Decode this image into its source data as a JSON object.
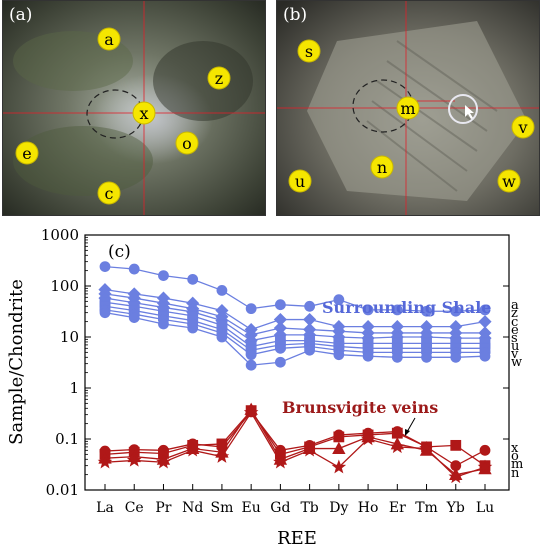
{
  "colors": {
    "shale": "#6b7fe0",
    "veins": "#b01818",
    "marker_fill": "#f5e600",
    "crosshair": "#e0202a",
    "annotation_blue": "#5568d8",
    "annotation_red": "#9c1a1a"
  },
  "photos": [
    {
      "panel": "(a)",
      "markers": [
        "a",
        "z",
        "x",
        "e",
        "o",
        "c"
      ]
    },
    {
      "panel": "(b)",
      "markers": [
        "s",
        "m",
        "v",
        "u",
        "n",
        "w"
      ]
    }
  ],
  "chart_data": {
    "type": "line",
    "panel": "(c)",
    "xlabel": "REE",
    "ylabel": "Sample/Chondrite",
    "yscale": "log",
    "ylim": [
      0.01,
      1000
    ],
    "ytick_labels": [
      "0.01",
      "0.1",
      "1",
      "10",
      "100",
      "1000"
    ],
    "categories": [
      "La",
      "Ce",
      "Pr",
      "Nd",
      "Sm",
      "Eu",
      "Gd",
      "Tb",
      "Dy",
      "Ho",
      "Er",
      "Tm",
      "Yb",
      "Lu"
    ],
    "annotations": {
      "shale": "Surrounding Shale",
      "veins": "Brunsvigite veins"
    },
    "groups": [
      {
        "name": "Surrounding Shale",
        "color": "#6b7fe0",
        "series": [
          {
            "name": "a",
            "marker": "circle",
            "values": [
              240,
              215,
              160,
              135,
              82,
              36,
              43,
              40,
              54,
              34,
              34,
              32,
              32,
              34
            ]
          },
          {
            "name": "z",
            "marker": "diamond",
            "values": [
              85,
              70,
              58,
              46,
              33,
              14,
              22,
              22,
              16,
              16,
              16,
              16,
              16,
              20
            ]
          },
          {
            "name": "c",
            "marker": "diamond",
            "values": [
              70,
              58,
              46,
              36,
              25,
              11,
              15,
              14,
              13,
              12,
              12,
              12,
              12,
              12
            ]
          },
          {
            "name": "e",
            "marker": "diamond",
            "values": [
              58,
              47,
              38,
              31,
              21,
              8.5,
              11,
              11,
              10,
              9.5,
              10,
              10,
              9.5,
              9.5
            ]
          },
          {
            "name": "s",
            "marker": "square",
            "values": [
              48,
              40,
              32,
              26,
              17,
              6.5,
              8.5,
              8.5,
              7.5,
              7.5,
              7.5,
              7.5,
              7.5,
              7.5
            ]
          },
          {
            "name": "u",
            "marker": "square",
            "values": [
              40,
              33,
              26,
              21,
              14,
              5.5,
              7,
              7.5,
              6.5,
              6,
              6,
              6,
              6,
              6
            ]
          },
          {
            "name": "v",
            "marker": "circle",
            "values": [
              34,
              28,
              22,
              18,
              12,
              4.5,
              6,
              6.5,
              5.5,
              5,
              5,
              5,
              5,
              5
            ]
          },
          {
            "name": "w",
            "marker": "circle",
            "values": [
              30,
              24,
              18,
              15,
              10,
              2.8,
              3.2,
              5.5,
              4.5,
              4.2,
              4,
              4,
              4,
              4.2
            ]
          }
        ]
      },
      {
        "name": "Brunsvigite veins",
        "color": "#b01818",
        "series": [
          {
            "name": "x",
            "marker": "circle",
            "values": [
              0.058,
              0.062,
              0.06,
              0.08,
              0.07,
              0.34,
              0.06,
              0.075,
              0.12,
              0.13,
              0.14,
              0.07,
              0.03,
              0.06
            ]
          },
          {
            "name": "o",
            "marker": "square",
            "values": [
              0.05,
              0.055,
              0.052,
              0.075,
              0.08,
              0.36,
              0.05,
              0.07,
              0.11,
              0.12,
              0.13,
              0.07,
              0.075,
              0.03
            ]
          },
          {
            "name": "m",
            "marker": "triangle",
            "values": [
              0.042,
              0.045,
              0.04,
              0.065,
              0.055,
              0.38,
              0.04,
              0.065,
              0.065,
              0.11,
              0.08,
              0.06,
              0.02,
              0.026
            ]
          },
          {
            "name": "n",
            "marker": "star",
            "values": [
              0.035,
              0.038,
              0.035,
              0.06,
              0.045,
              0.33,
              0.035,
              0.06,
              0.028,
              0.1,
              0.07,
              0.065,
              0.018,
              0.028
            ]
          }
        ]
      }
    ]
  }
}
